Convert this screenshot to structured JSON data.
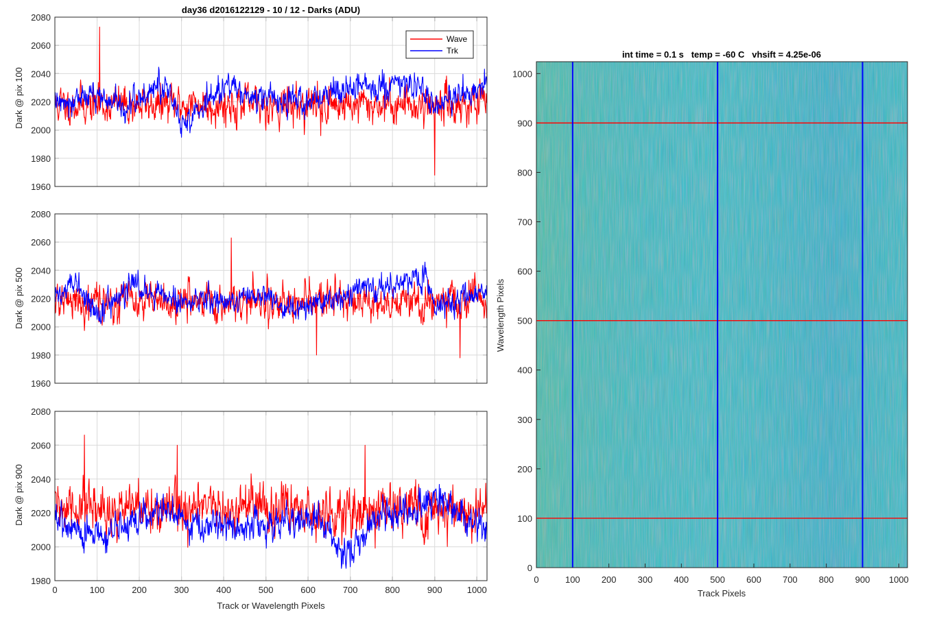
{
  "colors": {
    "wave": "#ff0000",
    "trk": "#0000ff",
    "grid": "#dadada",
    "axis": "#262626",
    "image_base": "#2aa0b4"
  },
  "chart_data": [
    {
      "type": "line",
      "title": "day36 d2016122129 - 10 / 12 - Darks (ADU)",
      "xlabel": "",
      "ylabel": "Dark @ pix 100",
      "xlim": [
        0,
        1024
      ],
      "ylim": [
        1960,
        2080
      ],
      "xticks": [
        "0",
        "100",
        "200",
        "300",
        "400",
        "500",
        "600",
        "700",
        "800",
        "900",
        "1000"
      ],
      "yticks": [
        "1960",
        "1980",
        "2000",
        "2020",
        "2040",
        "2060",
        "2080"
      ],
      "grid": true,
      "legend": {
        "position": "top-right",
        "entries": [
          "Wave",
          "Trk"
        ]
      },
      "series": [
        {
          "name": "Wave",
          "color": "#ff0000",
          "mean": 2018,
          "noise": 11,
          "seed": 11,
          "spikes": [
            [
              106,
              2073
            ],
            [
              900,
              1968
            ],
            [
              630,
              1996
            ]
          ]
        },
        {
          "name": "Trk",
          "color": "#0000ff",
          "mean": 2020,
          "noise": 8,
          "seed": 12,
          "segments": [
            [
              0,
              2020
            ],
            [
              100,
              2025
            ],
            [
              160,
              2015
            ],
            [
              260,
              2033
            ],
            [
              300,
              2005
            ],
            [
              400,
              2030
            ],
            [
              450,
              2025
            ],
            [
              600,
              2020
            ],
            [
              650,
              2025
            ],
            [
              830,
              2035
            ],
            [
              900,
              2018
            ],
            [
              1024,
              2032
            ]
          ]
        }
      ]
    },
    {
      "type": "line",
      "title": "",
      "xlabel": "",
      "ylabel": "Dark @ pix 500",
      "xlim": [
        0,
        1024
      ],
      "ylim": [
        1960,
        2080
      ],
      "xticks": [
        "0",
        "100",
        "200",
        "300",
        "400",
        "500",
        "600",
        "700",
        "800",
        "900",
        "1000"
      ],
      "yticks": [
        "1960",
        "1980",
        "2000",
        "2020",
        "2040",
        "2060",
        "2080"
      ],
      "grid": true,
      "series": [
        {
          "name": "Wave",
          "color": "#ff0000",
          "mean": 2018,
          "noise": 11,
          "seed": 21,
          "spikes": [
            [
              418,
              2063
            ],
            [
              620,
              1980
            ],
            [
              960,
              1978
            ]
          ]
        },
        {
          "name": "Trk",
          "color": "#0000ff",
          "mean": 2020,
          "noise": 7,
          "seed": 22,
          "segments": [
            [
              0,
              2020
            ],
            [
              50,
              2030
            ],
            [
              100,
              2010
            ],
            [
              190,
              2030
            ],
            [
              300,
              2018
            ],
            [
              500,
              2020
            ],
            [
              560,
              2010
            ],
            [
              700,
              2025
            ],
            [
              880,
              2035
            ],
            [
              900,
              2015
            ],
            [
              1024,
              2025
            ]
          ]
        }
      ]
    },
    {
      "type": "line",
      "title": "",
      "xlabel": "Track or Wavelength Pixels",
      "ylabel": "Dark @ pix 900",
      "xlim": [
        0,
        1024
      ],
      "ylim": [
        1980,
        2080
      ],
      "xticks": [
        "0",
        "100",
        "200",
        "300",
        "400",
        "500",
        "600",
        "700",
        "800",
        "900",
        "1000"
      ],
      "yticks": [
        "1980",
        "2000",
        "2020",
        "2040",
        "2060",
        "2080"
      ],
      "grid": true,
      "series": [
        {
          "name": "Wave",
          "color": "#ff0000",
          "mean": 2022,
          "noise": 12,
          "seed": 31,
          "spikes": [
            [
              70,
              2066
            ],
            [
              290,
              2060
            ],
            [
              735,
              2060
            ]
          ]
        },
        {
          "name": "Trk",
          "color": "#0000ff",
          "mean": 2010,
          "noise": 8,
          "seed": 32,
          "segments": [
            [
              0,
              2018
            ],
            [
              100,
              2005
            ],
            [
              250,
              2020
            ],
            [
              400,
              2010
            ],
            [
              500,
              2012
            ],
            [
              620,
              2015
            ],
            [
              700,
              1995
            ],
            [
              750,
              2015
            ],
            [
              870,
              2025
            ],
            [
              900,
              2030
            ],
            [
              1024,
              2008
            ]
          ]
        }
      ]
    },
    {
      "type": "heatmap",
      "title": "int time = 0.1 s   temp = -60 C   vhsift = 4.25e-06",
      "xlabel": "Track Pixels",
      "ylabel": "Wavelength Pixels",
      "xlim": [
        0,
        1024
      ],
      "ylim": [
        0,
        1024
      ],
      "xticks": [
        "0",
        "100",
        "200",
        "300",
        "400",
        "500",
        "600",
        "700",
        "800",
        "900",
        "1000"
      ],
      "yticks": [
        "0",
        "100",
        "200",
        "300",
        "400",
        "500",
        "600",
        "700",
        "800",
        "900",
        "1000"
      ],
      "vertical_lines_x": [
        100,
        500,
        900
      ],
      "horizontal_lines_y": [
        100,
        500,
        900
      ],
      "vertical_line_color": "#0000ff",
      "horizontal_line_color": "#ff0000"
    }
  ]
}
